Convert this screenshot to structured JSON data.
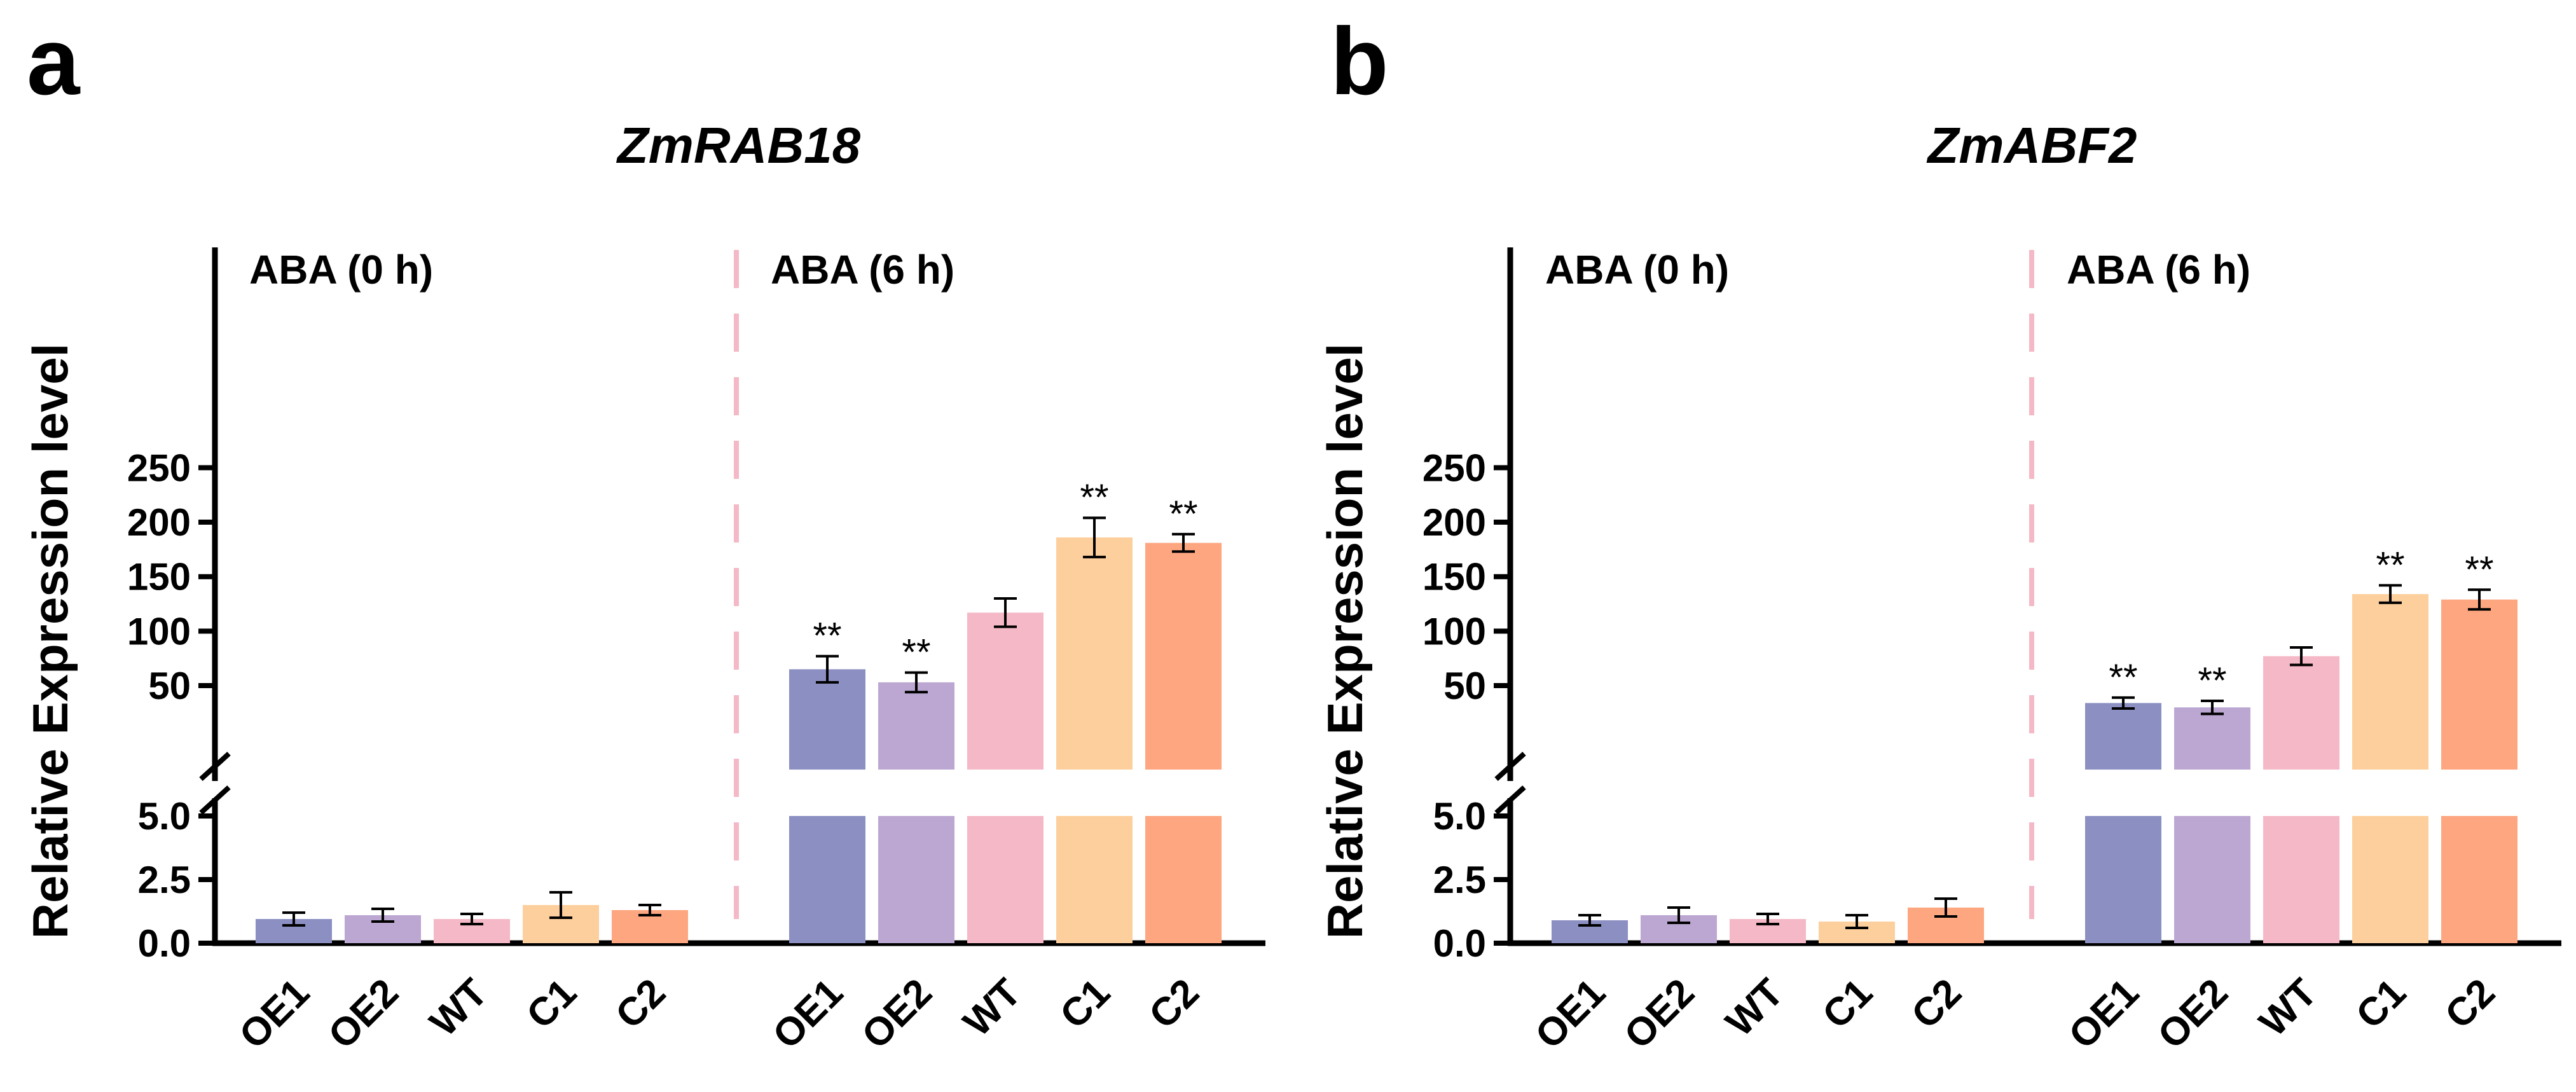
{
  "colors": {
    "OE1": "#8b8fc2",
    "OE2": "#bba7d2",
    "WT": "#f4b8c6",
    "C1": "#fdcf9c",
    "C2": "#fda67f",
    "divider": "#f4b8c6",
    "axis": "#000000"
  },
  "chart_data": [
    {
      "type": "bar",
      "panel_label": "a",
      "title": "ZmRAB18",
      "ylabel": "Relative Expression level",
      "y_axis_break": {
        "lower_range": [
          0,
          5
        ],
        "upper_range": [
          10,
          250
        ]
      },
      "yticks_lower": [
        "0.0",
        "2.5",
        "5.0"
      ],
      "yticks_upper": [
        "50",
        "100",
        "150",
        "200",
        "250"
      ],
      "groups": [
        {
          "condition": "ABA (0 h)",
          "categories": [
            "OE1",
            "OE2",
            "WT",
            "C1",
            "C2"
          ],
          "values": [
            0.95,
            1.1,
            0.95,
            1.5,
            1.3
          ],
          "errors": [
            0.25,
            0.25,
            0.2,
            0.5,
            0.2
          ],
          "significance": [
            "",
            "",
            "",
            "",
            ""
          ]
        },
        {
          "condition": "ABA (6 h)",
          "categories": [
            "OE1",
            "OE2",
            "WT",
            "C1",
            "C2"
          ],
          "values": [
            65,
            53,
            117,
            186,
            181
          ],
          "errors": [
            12,
            9,
            13,
            18,
            8
          ],
          "significance": [
            "**",
            "**",
            "",
            "**",
            "**"
          ]
        }
      ]
    },
    {
      "type": "bar",
      "panel_label": "b",
      "title": "ZmABF2",
      "ylabel": "Relative Expression level",
      "y_axis_break": {
        "lower_range": [
          0,
          5
        ],
        "upper_range": [
          10,
          250
        ]
      },
      "yticks_lower": [
        "0.0",
        "2.5",
        "5.0"
      ],
      "yticks_upper": [
        "50",
        "100",
        "150",
        "200",
        "250"
      ],
      "groups": [
        {
          "condition": "ABA (0 h)",
          "categories": [
            "OE1",
            "OE2",
            "WT",
            "C1",
            "C2"
          ],
          "values": [
            0.9,
            1.1,
            0.95,
            0.85,
            1.4
          ],
          "errors": [
            0.2,
            0.3,
            0.2,
            0.25,
            0.35
          ],
          "significance": [
            "",
            "",
            "",
            "",
            ""
          ]
        },
        {
          "condition": "ABA (6 h)",
          "categories": [
            "OE1",
            "OE2",
            "WT",
            "C1",
            "C2"
          ],
          "values": [
            34,
            30,
            77,
            134,
            129
          ],
          "errors": [
            5,
            6,
            8,
            8,
            9
          ],
          "significance": [
            "**",
            "**",
            "",
            "**",
            "**"
          ]
        }
      ]
    }
  ]
}
